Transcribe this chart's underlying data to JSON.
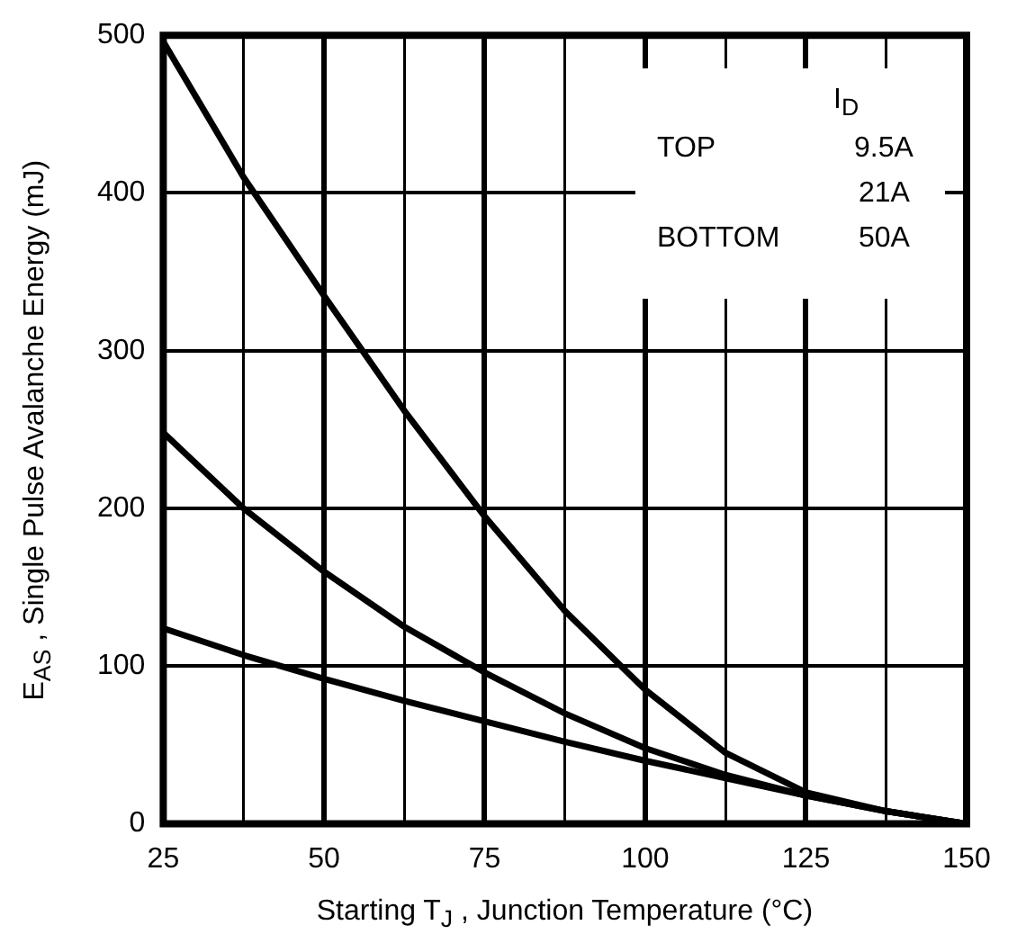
{
  "chart_data": {
    "type": "line",
    "xlabel": "Starting T$_{J}$ , Junction Temperature (°C)",
    "ylabel": "E$_{AS}$ , Single Pulse Avalanche Energy (mJ)",
    "legend_title": "I$_{D}$",
    "annotations": [
      "TOP",
      "9.5A",
      "21A",
      "BOTTOM",
      "50A"
    ],
    "x": [
      25,
      37.5,
      50,
      62.5,
      75,
      87.5,
      100,
      112.5,
      125,
      137.5,
      150
    ],
    "series": [
      {
        "color": "#000000",
        "values": [
          496,
          410,
          335,
          262,
          195,
          135,
          85,
          45,
          20,
          8,
          0
        ]
      },
      {
        "color": "#000000",
        "values": [
          248,
          200,
          160,
          125,
          96,
          70,
          48,
          31,
          18,
          8,
          0
        ]
      },
      {
        "color": "#000000",
        "values": [
          124,
          107,
          92,
          78,
          65,
          52,
          40,
          29,
          18,
          8,
          0
        ]
      }
    ],
    "xlim": [
      25,
      150
    ],
    "xticks": [
      25,
      {
        "value": 37.5,
        "label": null
      },
      50,
      {
        "value": 62.5,
        "label": null
      },
      75,
      {
        "value": 87.5,
        "label": null
      },
      100,
      {
        "value": 112.5,
        "label": null
      },
      125,
      {
        "value": 137.5,
        "label": null
      },
      150
    ],
    "ylim": [
      0,
      500
    ],
    "yticks": [
      0,
      100,
      200,
      300,
      400,
      500
    ],
    "grid": true,
    "marker": "none",
    "line_style": "solid"
  }
}
